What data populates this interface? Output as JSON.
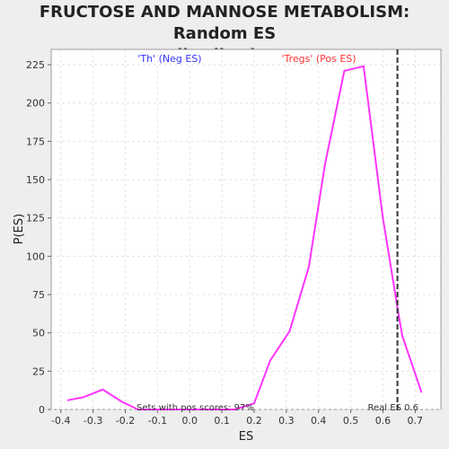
{
  "chart_data": {
    "type": "line",
    "title": "FRUCTOSE AND MANNOSE METABOLISM: Random ES distribution",
    "title_lines": [
      "FRUCTOSE AND MANNOSE METABOLISM: Random ES",
      "distribution"
    ],
    "xlabel": "ES",
    "ylabel": "P(ES)",
    "xlim": [
      -0.43,
      0.78
    ],
    "ylim": [
      0,
      235
    ],
    "x_ticks": [
      -0.4,
      -0.3,
      -0.2,
      -0.1,
      0.0,
      0.1,
      0.2,
      0.3,
      0.4,
      0.5,
      0.6,
      0.7
    ],
    "x_tick_labels": [
      "-0.4",
      "-0.3",
      "-0.2",
      "-0.1",
      "0.0",
      "0.1",
      "0.2",
      "0.3",
      "0.4",
      "0.5",
      "0.6",
      "0.7"
    ],
    "y_ticks": [
      0,
      25,
      50,
      75,
      100,
      125,
      150,
      175,
      200,
      225
    ],
    "y_tick_labels": [
      "0",
      "25",
      "50",
      "75",
      "100",
      "125",
      "150",
      "175",
      "200",
      "225"
    ],
    "grid": true,
    "series": [
      {
        "color": "#ff33ff",
        "points": [
          [
            -0.38,
            6
          ],
          [
            -0.33,
            8
          ],
          [
            -0.27,
            13
          ],
          [
            -0.21,
            5
          ],
          [
            -0.16,
            0
          ],
          [
            0.14,
            0
          ],
          [
            0.2,
            4
          ],
          [
            0.25,
            32
          ],
          [
            0.31,
            51
          ],
          [
            0.37,
            93
          ],
          [
            0.42,
            160
          ],
          [
            0.48,
            221
          ],
          [
            0.54,
            224
          ],
          [
            0.6,
            125
          ],
          [
            0.65,
            60
          ],
          [
            0.66,
            48
          ],
          [
            0.72,
            11
          ]
        ]
      }
    ],
    "vline": {
      "x": 0.645,
      "color": "#333333",
      "style": "dashed"
    },
    "annotations": {
      "neg_label": "'Th' (Neg ES)",
      "neg_color": "#3333ff",
      "pos_label": "'Tregs' (Pos ES)",
      "pos_color": "#ff3333",
      "sets_pos": "Sets with pos scores: 97%",
      "real_es": "Real ES 0.6"
    }
  }
}
